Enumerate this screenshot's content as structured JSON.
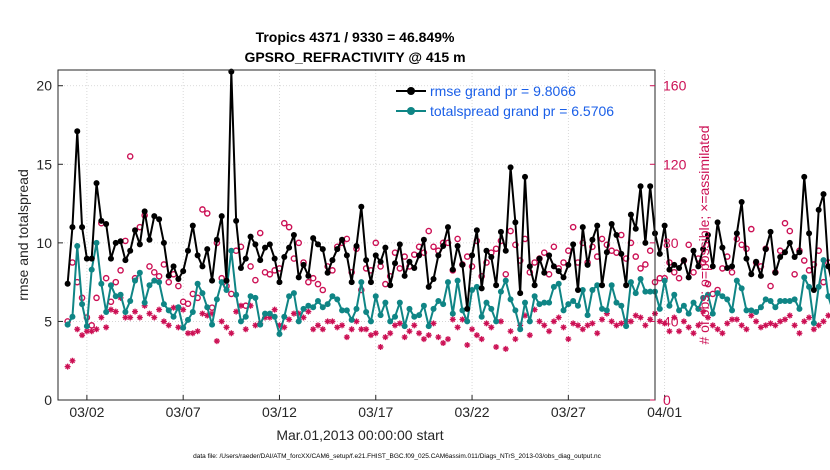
{
  "chart_data": {
    "type": "line",
    "title_line1": "Tropics 4371 / 9330 = 46.849%",
    "title_line2": "GPSRO_REFRACTIVITY @ 415 m",
    "xlabel": "Mar.01,2013 00:00:00 start",
    "ylabel_left": "rmse and totalspread",
    "ylabel_right": "# of obs: o=possible; ×=assimilated",
    "footnote": "data file: /Users/raeder/DAI/ATM_forcXX/CAM6_setup/f.e21.FHIST_BGC.f09_025.CAM6assim.011/Diags_NTrS_2013-03/obs_diag_output.nc",
    "xlim_days": [
      0.5,
      31.5
    ],
    "ylim_left": [
      0,
      21
    ],
    "ylim_right": [
      0,
      168
    ],
    "x_ticks": [
      {
        "day": 2,
        "label": "03/02"
      },
      {
        "day": 7,
        "label": "03/07"
      },
      {
        "day": 12,
        "label": "03/12"
      },
      {
        "day": 17,
        "label": "03/17"
      },
      {
        "day": 22,
        "label": "03/22"
      },
      {
        "day": 27,
        "label": "03/27"
      },
      {
        "day": 32,
        "label": "04/01"
      }
    ],
    "y_ticks_left": [
      0,
      5,
      10,
      15,
      20
    ],
    "y_ticks_right": [
      0,
      40,
      80,
      120,
      160
    ],
    "legend": [
      {
        "name": "rmse grand pr = 9.8066",
        "color": "#000000"
      },
      {
        "name": "totalspread grand pr = 6.5706",
        "color": "#0f8585"
      }
    ],
    "colors": {
      "rmse": "#000000",
      "spread": "#0f8585",
      "obs": "#cc1155",
      "grid": "#cfcfcf"
    },
    "times_per_day": 4,
    "start_day": 1,
    "series": [
      {
        "name": "rmse",
        "values": [
          7.4,
          11.0,
          17.1,
          11.0,
          9.0,
          9.0,
          13.8,
          11.4,
          11.2,
          9.0,
          10.0,
          10.1,
          8.9,
          9.5,
          10.8,
          9.9,
          12.0,
          10.2,
          11.7,
          11.5,
          10.0,
          7.9,
          8.5,
          7.7,
          8.2,
          9.5,
          11.1,
          9.2,
          8.5,
          9.6,
          7.6,
          10.2,
          11.7,
          7.6,
          20.9,
          11.4,
          8.4,
          9.0,
          10.4,
          9.9,
          8.9,
          9.7,
          9.9,
          9.0,
          7.5,
          9.1,
          9.7,
          10.5,
          7.8,
          8.6,
          7.9,
          10.3,
          9.9,
          9.6,
          8.1,
          8.9,
          9.6,
          10.2,
          9.2,
          7.5,
          9.8,
          12.3,
          8.9,
          7.5,
          9.2,
          8.8,
          9.7,
          7.3,
          8.7,
          9.9,
          7.9,
          8.8,
          8.4,
          9.2,
          10.2,
          7.2,
          7.7,
          9.2,
          9.8,
          11.0,
          8.3,
          9.8,
          8.6,
          5.8,
          9.2,
          10.8,
          7.1,
          9.5,
          9.1,
          7.3,
          10.7,
          9.5,
          14.8,
          11.3,
          6.8,
          14.2,
          8.5,
          7.3,
          9.0,
          8.1,
          9.2,
          8.5,
          8.2,
          7.8,
          8.6,
          9.9,
          7.0,
          11.0,
          8.6,
          10.2,
          11.1,
          7.3,
          9.4,
          11.2,
          10.5,
          9.3,
          7.3,
          11.8,
          10.9,
          13.6,
          10.0,
          13.6,
          10.6,
          9.3,
          11.1,
          8.3,
          8.6,
          8.4,
          8.9,
          7.8,
          9.5,
          8.5,
          9.6,
          10.5,
          8.5,
          11.3,
          9.7,
          8.4,
          8.5,
          10.6,
          12.6,
          9.0,
          8.0,
          8.8,
          7.9,
          9.6,
          10.7,
          8.1,
          9.1,
          9.4,
          10.0,
          9.1,
          9.4,
          14.2,
          10.6,
          7.0,
          12.1,
          13.1,
          8.5,
          7.2,
          10.1,
          11.1,
          8.4,
          6.6,
          14.4,
          9.4,
          8.6,
          12.5,
          8.7,
          9.6,
          9.4,
          10.3,
          15.7
        ]
      },
      {
        "name": "totalspread",
        "values": [
          4.8,
          5.3,
          9.8,
          6.1,
          4.7,
          8.3,
          10.0,
          7.4,
          5.6,
          7.3,
          6.6,
          6.7,
          5.6,
          6.3,
          7.6,
          8.1,
          6.2,
          7.3,
          7.6,
          7.5,
          6.1,
          5.7,
          5.3,
          5.9,
          4.6,
          5.1,
          5.6,
          7.4,
          6.8,
          5.9,
          4.8,
          6.4,
          7.5,
          7.0,
          9.5,
          6.7,
          5.0,
          5.3,
          6.6,
          6.5,
          4.8,
          5.5,
          5.5,
          5.3,
          4.2,
          5.3,
          6.6,
          6.8,
          5.0,
          5.8,
          6.0,
          5.9,
          6.3,
          5.9,
          6.1,
          6.6,
          6.4,
          5.7,
          5.7,
          5.1,
          5.8,
          7.5,
          5.6,
          5.0,
          6.6,
          5.4,
          6.2,
          5.0,
          5.3,
          6.2,
          4.7,
          5.8,
          5.3,
          5.4,
          6.0,
          4.7,
          5.8,
          6.3,
          6.1,
          7.5,
          5.5,
          7.6,
          5.7,
          5.0,
          7.0,
          7.2,
          5.3,
          6.2,
          5.8,
          5.0,
          6.9,
          7.6,
          6.4,
          5.7,
          4.5,
          6.2,
          5.0,
          6.6,
          6.1,
          6.2,
          6.2,
          7.2,
          7.4,
          5.7,
          6.1,
          6.3,
          6.0,
          7.0,
          5.4,
          7.0,
          7.3,
          5.8,
          5.7,
          7.3,
          6.2,
          6.0,
          4.7,
          7.5,
          6.8,
          7.7,
          6.9,
          6.9,
          6.9,
          5.8,
          7.6,
          6.0,
          6.7,
          5.7,
          6.0,
          5.5,
          6.2,
          5.8,
          6.5,
          6.7,
          5.5,
          6.8,
          6.6,
          6.4,
          5.7,
          7.6,
          7.1,
          5.7,
          5.7,
          5.6,
          5.9,
          6.4,
          6.3,
          5.9,
          6.3,
          6.3,
          6.3,
          6.4,
          5.8,
          7.8,
          7.2,
          4.9,
          7.2,
          8.9,
          6.6,
          5.6,
          6.3,
          6.8,
          6.6,
          5.7,
          7.5,
          7.8,
          6.6,
          8.0,
          6.2,
          6.6,
          6.6,
          7.2,
          12.4
        ]
      },
      {
        "name": "obs_possible",
        "values": [
          40,
          70,
          60,
          52,
          42,
          38,
          52,
          90,
          62,
          50,
          60,
          66,
          81,
          124,
          62,
          88,
          94,
          68,
          65,
          63,
          69,
          60,
          64,
          58,
          50,
          49,
          54,
          52,
          97,
          95,
          47,
          80,
          62,
          58,
          54,
          76,
          78,
          48,
          68,
          61,
          85,
          65,
          64,
          66,
          67,
          90,
          88,
          72,
          80,
          70,
          60,
          62,
          59,
          56,
          68,
          66,
          78,
          80,
          82,
          65,
          77,
          56,
          67,
          66,
          80,
          68,
          59,
          63,
          75,
          67,
          73,
          68,
          74,
          78,
          75,
          86,
          78,
          76,
          80,
          80,
          66,
          82,
          69,
          73,
          68,
          81,
          63,
          70,
          75,
          77,
          81,
          64,
          86,
          79,
          71,
          82,
          65,
          70,
          72,
          75,
          64,
          78,
          67,
          70,
          76,
          88,
          70,
          80,
          70,
          78,
          73,
          82,
          79,
          76,
          75,
          84,
          72,
          80,
          73,
          67,
          69,
          76,
          60,
          62,
          62,
          70,
          65,
          62,
          71,
          79,
          65,
          72,
          70,
          59,
          54,
          56,
          67,
          73,
          65,
          82,
          79,
          77,
          87,
          70,
          68,
          77,
          58,
          65,
          76,
          90,
          86,
          64,
          76,
          71,
          66,
          69,
          76,
          60,
          70,
          61,
          95,
          83,
          72,
          79,
          69,
          82,
          66,
          89,
          65,
          95,
          80,
          70,
          64,
          60,
          70,
          65,
          57,
          67,
          62,
          75
        ]
      },
      {
        "name": "obs_assimilated",
        "values": [
          17,
          20,
          36,
          33,
          35,
          35,
          36,
          42,
          37,
          46,
          45,
          52,
          42,
          42,
          45,
          42,
          48,
          44,
          42,
          46,
          40,
          38,
          47,
          37,
          46,
          34,
          34,
          35,
          44,
          43,
          44,
          30,
          40,
          37,
          34,
          45,
          48,
          36,
          48,
          38,
          39,
          42,
          42,
          46,
          38,
          37,
          41,
          44,
          44,
          42,
          45,
          36,
          38,
          36,
          40,
          40,
          37,
          38,
          32,
          36,
          40,
          36,
          36,
          33,
          34,
          27,
          32,
          34,
          38,
          39,
          32,
          35,
          38,
          34,
          31,
          33,
          39,
          32,
          29,
          31,
          41,
          37,
          41,
          28,
          36,
          33,
          31,
          39,
          37,
          27,
          40,
          26,
          35,
          31,
          38,
          43,
          33,
          46,
          40,
          38,
          35,
          40,
          42,
          37,
          31,
          39,
          38,
          36,
          38,
          39,
          34,
          41,
          44,
          40,
          38,
          39,
          40,
          40,
          43,
          42,
          38,
          41,
          44,
          40,
          39,
          35,
          42,
          35,
          40,
          37,
          34,
          38,
          45,
          42,
          38,
          36,
          34,
          39,
          41,
          41,
          38,
          36,
          43,
          40,
          37,
          38,
          39,
          38,
          40,
          41,
          43,
          38,
          34,
          40,
          42,
          36,
          38,
          40,
          43,
          39,
          40,
          41,
          37,
          33,
          38,
          42,
          36,
          34,
          38,
          42,
          40,
          38,
          37,
          36,
          40,
          30,
          24
        ]
      }
    ]
  }
}
